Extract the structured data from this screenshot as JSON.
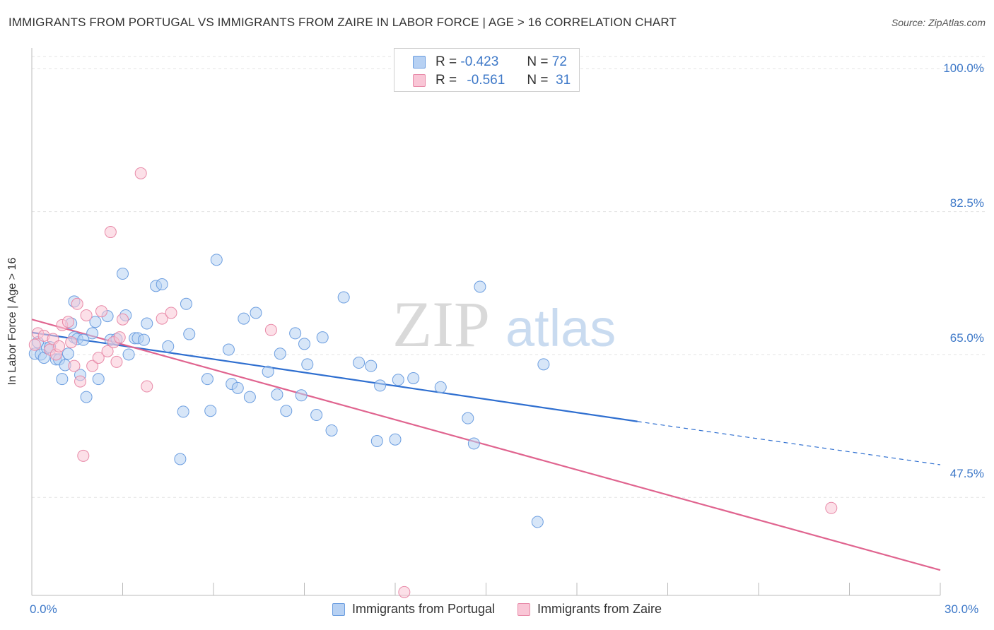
{
  "title": "IMMIGRANTS FROM PORTUGAL VS IMMIGRANTS FROM ZAIRE IN LABOR FORCE | AGE > 16 CORRELATION CHART",
  "source": "Source: ZipAtlas.com",
  "watermark": {
    "zip": "ZIP",
    "atlas": "atlas"
  },
  "legend": {
    "portugal": {
      "r_label": "R =",
      "r_value": "-0.423",
      "n_label": "N =",
      "n_value": "72"
    },
    "zaire": {
      "r_label": "R =",
      "r_value": "-0.561",
      "n_label": "N =",
      "n_value": "31"
    }
  },
  "colors": {
    "portugal": "#6c9ee0",
    "portugal_fill": "#b7d1f3",
    "portugal_line": "#2f6fd0",
    "zaire": "#e88aa8",
    "zaire_fill": "#f9c6d6",
    "zaire_line": "#e0648f",
    "tick": "#3d78c8"
  },
  "chart_data": {
    "type": "scatter",
    "title": "IMMIGRANTS FROM PORTUGAL VS IMMIGRANTS FROM ZAIRE IN LABOR FORCE | AGE > 16 CORRELATION CHART",
    "xlabel": "",
    "ylabel": "In Labor Force | Age > 16",
    "xlim": [
      0,
      30
    ],
    "ylim": [
      35.5,
      101.5
    ],
    "x_tick_labels": [
      "0.0%",
      "30.0%"
    ],
    "y_ticks": [
      47.5,
      65.0,
      82.5,
      100.0
    ],
    "y_tick_labels": [
      "47.5%",
      "65.0%",
      "82.5%",
      "100.0%"
    ],
    "grid": true,
    "legend_position": "top-center",
    "series": [
      {
        "name": "Immigrants from Portugal",
        "r": -0.423,
        "n": 72,
        "trend": {
          "x_solid": [
            0,
            20
          ],
          "y_solid": [
            67.7,
            56.8
          ],
          "x_dashed": [
            20,
            30
          ],
          "y_dashed": [
            56.8,
            51.5
          ]
        },
        "points": [
          [
            0.1,
            65.1
          ],
          [
            0.2,
            66.5
          ],
          [
            0.3,
            65.0
          ],
          [
            0.4,
            64.6
          ],
          [
            0.5,
            65.8
          ],
          [
            0.6,
            65.9
          ],
          [
            0.8,
            64.4
          ],
          [
            0.9,
            64.4
          ],
          [
            1.0,
            62.0
          ],
          [
            1.1,
            63.7
          ],
          [
            1.2,
            65.1
          ],
          [
            1.3,
            68.8
          ],
          [
            1.4,
            67.1
          ],
          [
            1.5,
            66.9
          ],
          [
            1.6,
            62.5
          ],
          [
            1.7,
            66.8
          ],
          [
            1.8,
            59.8
          ],
          [
            2.0,
            67.6
          ],
          [
            2.1,
            69.0
          ],
          [
            2.2,
            62.0
          ],
          [
            2.5,
            69.7
          ],
          [
            2.6,
            66.8
          ],
          [
            3.0,
            74.9
          ],
          [
            3.1,
            69.8
          ],
          [
            3.2,
            65.0
          ],
          [
            3.4,
            67.0
          ],
          [
            3.5,
            67.0
          ],
          [
            3.8,
            68.8
          ],
          [
            4.1,
            73.4
          ],
          [
            4.3,
            73.6
          ],
          [
            4.5,
            66.0
          ],
          [
            4.9,
            52.2
          ],
          [
            5.1,
            71.2
          ],
          [
            5.2,
            67.5
          ],
          [
            5.8,
            62.0
          ],
          [
            5.9,
            58.1
          ],
          [
            6.1,
            76.6
          ],
          [
            6.5,
            65.6
          ],
          [
            6.6,
            61.4
          ],
          [
            6.8,
            60.9
          ],
          [
            7.0,
            69.4
          ],
          [
            7.2,
            59.8
          ],
          [
            7.4,
            70.1
          ],
          [
            7.8,
            62.9
          ],
          [
            8.1,
            60.1
          ],
          [
            8.2,
            65.1
          ],
          [
            8.4,
            58.1
          ],
          [
            8.7,
            67.6
          ],
          [
            8.9,
            60.0
          ],
          [
            9.1,
            63.8
          ],
          [
            9.4,
            57.6
          ],
          [
            9.6,
            67.1
          ],
          [
            9.9,
            55.7
          ],
          [
            10.3,
            72.0
          ],
          [
            10.8,
            64.0
          ],
          [
            11.2,
            63.6
          ],
          [
            11.4,
            54.4
          ],
          [
            11.5,
            61.2
          ],
          [
            12.0,
            54.6
          ],
          [
            12.1,
            61.9
          ],
          [
            12.6,
            62.1
          ],
          [
            13.5,
            61.0
          ],
          [
            14.4,
            57.2
          ],
          [
            14.6,
            54.1
          ],
          [
            14.8,
            73.3
          ],
          [
            16.7,
            44.5
          ],
          [
            16.9,
            63.8
          ],
          [
            1.4,
            71.5
          ],
          [
            2.8,
            66.9
          ],
          [
            5.0,
            58.0
          ],
          [
            3.7,
            66.8
          ],
          [
            9.0,
            66.3
          ]
        ]
      },
      {
        "name": "Immigrants from Zaire",
        "r": -0.561,
        "n": 31,
        "trend": {
          "x_solid": [
            0,
            30
          ],
          "y_solid": [
            69.3,
            38.6
          ]
        },
        "points": [
          [
            0.1,
            66.2
          ],
          [
            0.2,
            67.6
          ],
          [
            0.4,
            67.3
          ],
          [
            0.6,
            65.6
          ],
          [
            0.7,
            66.9
          ],
          [
            0.8,
            65.0
          ],
          [
            1.0,
            68.6
          ],
          [
            1.2,
            69.0
          ],
          [
            1.3,
            66.5
          ],
          [
            1.4,
            63.6
          ],
          [
            1.5,
            71.2
          ],
          [
            1.6,
            61.7
          ],
          [
            1.7,
            52.6
          ],
          [
            1.8,
            69.8
          ],
          [
            2.0,
            63.6
          ],
          [
            2.2,
            64.6
          ],
          [
            2.3,
            70.3
          ],
          [
            2.5,
            65.4
          ],
          [
            2.6,
            80.0
          ],
          [
            2.7,
            66.5
          ],
          [
            2.8,
            64.1
          ],
          [
            3.0,
            69.3
          ],
          [
            3.6,
            87.2
          ],
          [
            3.8,
            61.1
          ],
          [
            4.3,
            69.4
          ],
          [
            4.6,
            70.1
          ],
          [
            7.9,
            68.0
          ],
          [
            26.4,
            46.2
          ],
          [
            12.3,
            35.9
          ],
          [
            0.9,
            66.0
          ],
          [
            2.9,
            67.1
          ]
        ]
      }
    ]
  },
  "bottom_legend": {
    "portugal": "Immigrants from Portugal",
    "zaire": "Immigrants from Zaire"
  }
}
